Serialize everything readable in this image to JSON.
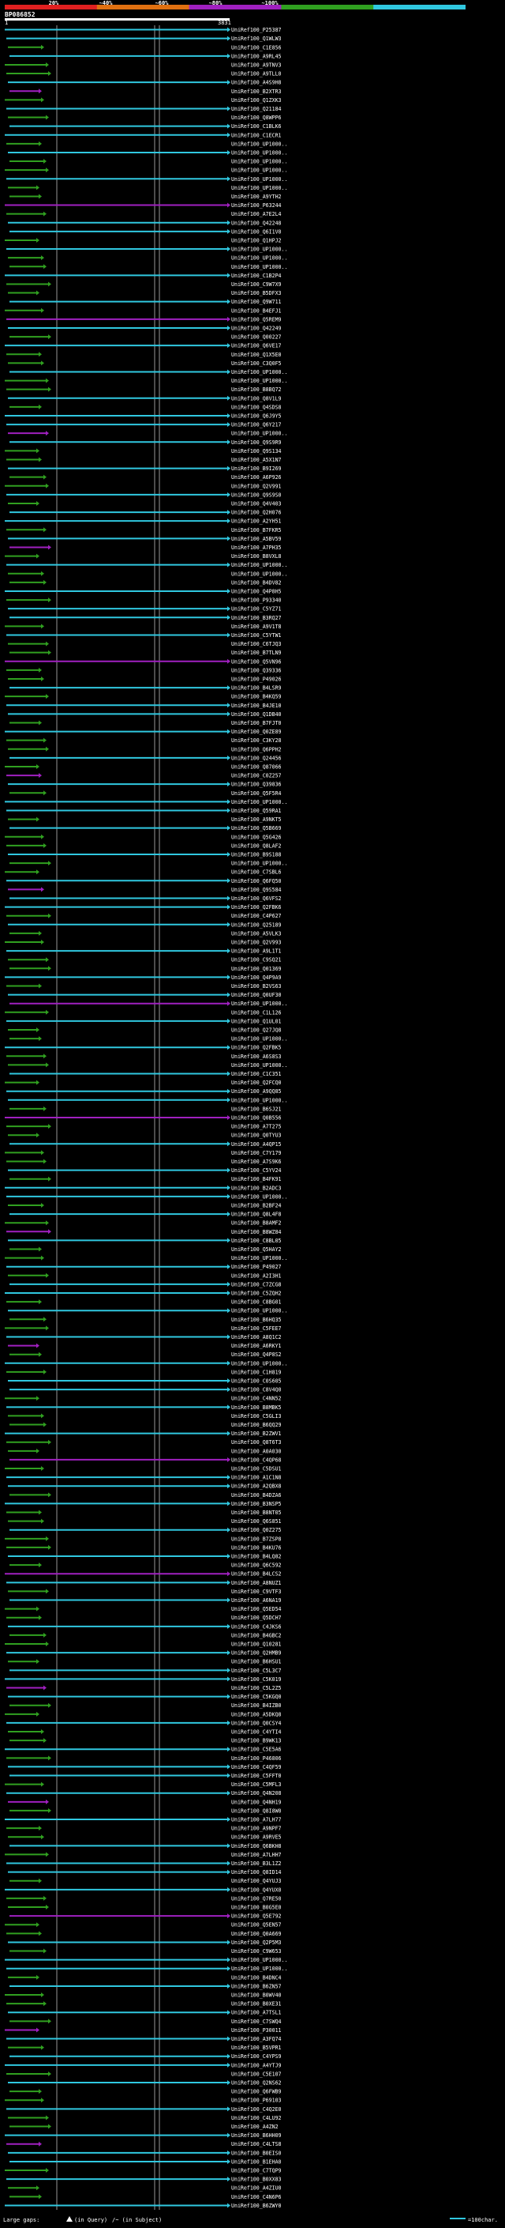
{
  "query": {
    "id": "BP086852",
    "start": "1",
    "end": "3831"
  },
  "legend_scale": [
    {
      "label": "20%",
      "color": "#e02020"
    },
    {
      "label": "~40%",
      "color": "#e07010"
    },
    {
      "label": "~60%",
      "color": "#a020c0"
    },
    {
      "label": "~80%",
      "color": "#30a020"
    },
    {
      "label": "~100%",
      "color": "#30c8e0"
    }
  ],
  "footer": {
    "gaps_label": "Large gaps: ",
    "in_query": "(in Query)",
    "in_subject": "/~ (in Subject)",
    "scale_note": "=100char."
  },
  "hits": [
    "UniRef100_P25387",
    "UniRef100_Q1WLW3",
    "UniRef100_C1E856",
    "UniRef100_A9RL45",
    "UniRef100_A9TNV3",
    "UniRef100_A9TLL0",
    "UniRef100_A4S9H8",
    "UniRef100_B2XTR3",
    "UniRef100_Q1ZXK3",
    "UniRef100_Q21184",
    "UniRef100_Q8WPP6",
    "UniRef100_C1BLK6",
    "UniRef100_C1ECR1",
    "UniRef100_UP1000..",
    "UniRef100_UP1000..",
    "UniRef100_UP1000..",
    "UniRef100_UP1000..",
    "UniRef100_UP1000..",
    "UniRef100_UP1000..",
    "UniRef100_A9YTH2",
    "UniRef100_P63244",
    "UniRef100_A7E2L4",
    "UniRef100_Q42248",
    "UniRef100_Q6I1V0",
    "UniRef100_Q1HPJ2",
    "UniRef100_UP1000..",
    "UniRef100_UP1000..",
    "UniRef100_UP1000..",
    "UniRef100_C1B2P4",
    "UniRef100_C9W7X9",
    "UniRef100_B5DFX3",
    "UniRef100_Q9W711",
    "UniRef100_B4EFJ1",
    "UniRef100_Q5REM9",
    "UniRef100_Q42249",
    "UniRef100_Q00227",
    "UniRef100_Q6VE17",
    "UniRef100_Q1X5E0",
    "UniRef100_C3Q0F5",
    "UniRef100_UP1000..",
    "UniRef100_UP1000..",
    "UniRef100_B8BQ72",
    "UniRef100_Q8V1L9",
    "UniRef100_Q4SDS8",
    "UniRef100_Q6J9Y5",
    "UniRef100_Q6Y217",
    "UniRef100_UP1000..",
    "UniRef100_Q9S9R9",
    "UniRef100_Q9S134",
    "UniRef100_A5X1N7",
    "UniRef100_B9I269",
    "UniRef100_A6P926",
    "UniRef100_Q2V991",
    "UniRef100_Q9S9S0",
    "UniRef100_Q4V403",
    "UniRef100_Q2H076",
    "UniRef100_A2YH51",
    "UniRef100_B7FKR5",
    "UniRef100_A5BV59",
    "UniRef100_A7PH35",
    "UniRef100_B8VXL8",
    "UniRef100_UP1000..",
    "UniRef100_UP1000..",
    "UniRef100_B4DV82",
    "UniRef100_Q4P8H5",
    "UniRef100_P93340",
    "UniRef100_C5YZ71",
    "UniRef100_B3RQ27",
    "UniRef100_A9V1T8",
    "UniRef100_C5YTW1",
    "UniRef100_C6TJQ3",
    "UniRef100_B7TLN9",
    "UniRef100_Q5VN96",
    "UniRef100_Q39336",
    "UniRef100_P49026",
    "UniRef100_B4LSR9",
    "UniRef100_B4KQ59",
    "UniRef100_B4JE10",
    "UniRef100_Q1DB40",
    "UniRef100_B7FJT0",
    "UniRef100_Q0ZE89",
    "UniRef100_C3KY28",
    "UniRef100_Q6PPH2",
    "UniRef100_Q24456",
    "UniRef100_Q87066",
    "UniRef100_C0Z257",
    "UniRef100_Q39836",
    "UniRef100_Q5F5R4",
    "UniRef100_UP1000..",
    "UniRef100_Q59RA1",
    "UniRef100_A9NKT5",
    "UniRef100_Q5B669",
    "UniRef100_Q5G426",
    "UniRef100_Q8LAF2",
    "UniRef100_B9S188",
    "UniRef100_UP1000..",
    "UniRef100_C7SBL6",
    "UniRef100_Q6FQ50",
    "UniRef100_Q9S584",
    "UniRef100_Q6VFS2",
    "UniRef100_Q2FBK6",
    "UniRef100_C4P627",
    "UniRef100_Q25189",
    "UniRef100_A5VLK3",
    "UniRef100_Q2V993",
    "UniRef100_A9L1T1",
    "UniRef100_C9SQ21",
    "UniRef100_Q01369",
    "UniRef100_Q4P9A9",
    "UniRef100_B2VS63",
    "UniRef100_Q0UF30",
    "UniRef100_UP1000..",
    "UniRef100_C1L126",
    "UniRef100_Q1UL01",
    "UniRef100_Q27JQ8",
    "UniRef100_UP1000..",
    "UniRef100_Q2FBK5",
    "UniRef100_A6S8S3",
    "UniRef100_UP1000..",
    "UniRef100_C1C351",
    "UniRef100_Q2FCQ0",
    "UniRef100_A9QQ85",
    "UniRef100_UP1000..",
    "UniRef100_B6SJ21",
    "UniRef100_Q0B556",
    "UniRef100_A7T275",
    "UniRef100_Q0TYU3",
    "UniRef100_A4QP15",
    "UniRef100_C7Y179",
    "UniRef100_A7S9K6",
    "UniRef100_C5YV24",
    "UniRef100_B4FK91",
    "UniRef100_B2ADC3",
    "UniRef100_UP1000..",
    "UniRef100_B2BF24",
    "UniRef100_Q8L4F8",
    "UniRef100_B8AMF2",
    "UniRef100_B8WZ84",
    "UniRef100_C8BL05",
    "UniRef100_Q5HAY2",
    "UniRef100_UP1000..",
    "UniRef100_P49027",
    "UniRef100_A2I3H1",
    "UniRef100_C7ZCG8",
    "UniRef100_C5ZQH2",
    "UniRef100_C8BG01",
    "UniRef100_UP1000..",
    "UniRef100_B6HQ35",
    "UniRef100_C5FEE7",
    "UniRef100_A8Q1C2",
    "UniRef100_A6RKY1",
    "UniRef100_Q4P8S2",
    "UniRef100_UP1000..",
    "UniRef100_C1H819",
    "UniRef100_C0S605",
    "UniRef100_C8V4Q0",
    "UniRef100_C4NN52",
    "UniRef100_B8MBK5",
    "UniRef100_C5GLI3",
    "UniRef100_B6QQ29",
    "UniRef100_B2ZWV1",
    "UniRef100_Q8T6T3",
    "UniRef100_A0A030",
    "UniRef100_C4QP68",
    "UniRef100_C5DSU1",
    "UniRef100_A1C1N8",
    "UniRef100_A2QBX8",
    "UniRef100_B4DZA6",
    "UniRef100_B3NSP5",
    "UniRef100_B8NT05",
    "UniRef100_Q6S851",
    "UniRef100_Q0Z275",
    "UniRef100_B7ZSP8",
    "UniRef100_B4KU76",
    "UniRef100_B4LQ82",
    "UniRef100_Q6C592",
    "UniRef100_B4LCS2",
    "UniRef100_A8NUZ1",
    "UniRef100_C9VTF3",
    "UniRef100_A6NA19",
    "UniRef100_Q5ED54",
    "UniRef100_Q5DCH7",
    "UniRef100_C4JKS6",
    "UniRef100_B4GBC2",
    "UniRef100_Q10281",
    "UniRef100_Q2HMB9",
    "UniRef100_B6HSU1",
    "UniRef100_C5L3C7",
    "UniRef100_C5K019",
    "UniRef100_C5L2Z5",
    "UniRef100_C5KGQ0",
    "UniRef100_B4IZB0",
    "UniRef100_A5DKQ8",
    "UniRef100_Q0CSY4",
    "UniRef100_C4YTI4",
    "UniRef100_B9WK13",
    "UniRef100_C5E5A6",
    "UniRef100_P46806",
    "UniRef100_C4QF59",
    "UniRef100_C5FFT0",
    "UniRef100_C5MFL3",
    "UniRef100_Q4N208",
    "UniRef100_Q4NH19",
    "UniRef100_Q8I8W0",
    "UniRef100_A7LH77",
    "UniRef100_A9NPF7",
    "UniRef100_A9RVE5",
    "UniRef100_Q6BKH8",
    "UniRef100_A7LHH7",
    "UniRef100_B3L1Z2",
    "UniRef100_Q8ID14",
    "UniRef100_Q4YUJ3",
    "UniRef100_Q4YUX0",
    "UniRef100_Q7RE50",
    "UniRef100_B0G5E0",
    "UniRef100_Q5E792",
    "UniRef100_Q5EN57",
    "UniRef100_Q0A669",
    "UniRef100_Q2P5M3",
    "UniRef100_C9W653",
    "UniRef100_UP1000..",
    "UniRef100_UP1000..",
    "UniRef100_B4DNC4",
    "UniRef100_B6ZN57",
    "UniRef100_B0WV40",
    "UniRef100_B0XE31",
    "UniRef100_A7TSL1",
    "UniRef100_C7SWQ4",
    "UniRef100_P30011",
    "UniRef100_A3FQ74",
    "UniRef100_B5VPR1",
    "UniRef100_C4YPS9",
    "UniRef100_A4YTJ9",
    "UniRef100_C5E107",
    "UniRef100_Q2NS62",
    "UniRef100_Q6FWB9",
    "UniRef100_P69103",
    "UniRef100_C4Q2E0",
    "UniRef100_C4LU92",
    "UniRef100_A4ZN2",
    "UniRef100_B6HH09",
    "UniRef100_C4LTS8",
    "UniRef100_B0EIS0",
    "UniRef100_B1EHA0",
    "UniRef100_C7TQP9",
    "UniRef100_B0XX83",
    "UniRef100_A4ZIU0",
    "UniRef100_C4N6P6",
    "UniRef100_B6ZWY0"
  ]
}
